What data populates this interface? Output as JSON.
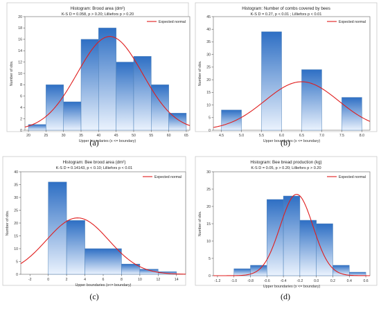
{
  "colors": {
    "bar_top": "#2e6fc4",
    "bar_bottom": "#eaf2fd",
    "curve": "#e01d1d"
  },
  "legend_label": "Expected normal",
  "chart_data": [
    {
      "id": "a",
      "caption": "(a)",
      "type": "bar",
      "title": "Histogram: Brood area (dm²)",
      "subtitle": "K-S D = 0.058, p > 0.20; Lilliefors p > 0.20",
      "xlabel": "Upper boundaries (x <= boundary)",
      "ylabel": "Number of obs.",
      "xlim": [
        19,
        66
      ],
      "ylim": [
        0,
        20
      ],
      "xticks": [
        20,
        25,
        30,
        35,
        40,
        45,
        50,
        55,
        60,
        65
      ],
      "yticks": [
        0,
        2,
        4,
        6,
        8,
        10,
        12,
        14,
        16,
        18,
        20
      ],
      "bins": [
        {
          "from": 20,
          "to": 25,
          "count": 1
        },
        {
          "from": 25,
          "to": 30,
          "count": 8
        },
        {
          "from": 30,
          "to": 35,
          "count": 5
        },
        {
          "from": 35,
          "to": 40,
          "count": 16
        },
        {
          "from": 40,
          "to": 45,
          "count": 18
        },
        {
          "from": 45,
          "to": 50,
          "count": 12
        },
        {
          "from": 50,
          "to": 55,
          "count": 13
        },
        {
          "from": 55,
          "to": 60,
          "count": 8
        },
        {
          "from": 60,
          "to": 65,
          "count": 3
        }
      ],
      "normal": {
        "mean": 43.2,
        "sd": 9.3,
        "peak": 16.5
      }
    },
    {
      "id": "b",
      "caption": "(b)",
      "type": "bar",
      "title": "Histogram: Number of combs covered by bees",
      "subtitle": "K-S D = 0.27, p < 0.01 ; Lilliefors p < 0.01",
      "xlabel": "Upper boundaries (x <= boundary)",
      "ylabel": "Number of obs.",
      "xlim": [
        4.3,
        8.2
      ],
      "ylim": [
        0,
        45
      ],
      "xticks": [
        4.5,
        5.0,
        5.5,
        6.0,
        6.5,
        7.0,
        7.5,
        8.0
      ],
      "yticks": [
        0,
        5,
        10,
        15,
        20,
        25,
        30,
        35,
        40,
        45
      ],
      "bins": [
        {
          "from": 4.5,
          "to": 5.0,
          "count": 8
        },
        {
          "from": 5.0,
          "to": 5.5,
          "count": 0
        },
        {
          "from": 5.5,
          "to": 6.0,
          "count": 39
        },
        {
          "from": 6.0,
          "to": 6.5,
          "count": 0
        },
        {
          "from": 6.5,
          "to": 7.0,
          "count": 24
        },
        {
          "from": 7.0,
          "to": 7.5,
          "count": 0
        },
        {
          "from": 7.5,
          "to": 8.0,
          "count": 13
        }
      ],
      "normal": {
        "mean": 6.5,
        "sd": 0.92,
        "peak": 19.2
      }
    },
    {
      "id": "c",
      "caption": "(c)",
      "type": "bar",
      "title": "Histogram: Bee brood area (dm²)",
      "subtitle": "K-S D = 0.14143, p < 0.10; Lilliefors p < 0.01",
      "xlabel": "Upper boundaries (x<= boundary)",
      "ylabel": "Number of obs.",
      "xlim": [
        -3,
        15
      ],
      "ylim": [
        0,
        40
      ],
      "xticks": [
        -2,
        0,
        2,
        4,
        6,
        8,
        10,
        12,
        14
      ],
      "yticks": [
        0,
        5,
        10,
        15,
        20,
        25,
        30,
        35,
        40
      ],
      "bins": [
        {
          "from": 0,
          "to": 2,
          "count": 36
        },
        {
          "from": 2,
          "to": 4,
          "count": 21
        },
        {
          "from": 4,
          "to": 8,
          "count": 10
        },
        {
          "from": 8,
          "to": 10,
          "count": 4
        },
        {
          "from": 10,
          "to": 12,
          "count": 2
        },
        {
          "from": 12,
          "to": 14,
          "count": 1
        }
      ],
      "normal": {
        "mean": 3.2,
        "sd": 3.4,
        "peak": 22
      }
    },
    {
      "id": "d",
      "caption": "(d)",
      "type": "bar",
      "title": "Histogram: Bee bread production (kg)",
      "subtitle": "K-S D = 0.05, p > 0.20; Lilliefors p > 0.20",
      "xlabel": "Upper boundaries (x <= boundary)",
      "ylabel": "Number of obs.",
      "xlim": [
        -1.25,
        0.65
      ],
      "ylim": [
        0,
        30
      ],
      "xticks": [
        -1.2,
        -1.0,
        -0.8,
        -0.6,
        -0.4,
        -0.2,
        0.0,
        0.2,
        0.4,
        0.6
      ],
      "yticks": [
        0,
        5,
        10,
        15,
        20,
        25,
        30
      ],
      "bins": [
        {
          "from": -1.0,
          "to": -0.8,
          "count": 2
        },
        {
          "from": -0.8,
          "to": -0.6,
          "count": 3
        },
        {
          "from": -0.6,
          "to": -0.4,
          "count": 22
        },
        {
          "from": -0.4,
          "to": -0.2,
          "count": 23
        },
        {
          "from": -0.2,
          "to": 0.0,
          "count": 16
        },
        {
          "from": 0.0,
          "to": 0.2,
          "count": 15
        },
        {
          "from": 0.2,
          "to": 0.4,
          "count": 3
        },
        {
          "from": 0.4,
          "to": 0.6,
          "count": 1
        }
      ],
      "normal": {
        "mean": -0.24,
        "sd": 0.2,
        "peak": 23.5
      }
    }
  ]
}
